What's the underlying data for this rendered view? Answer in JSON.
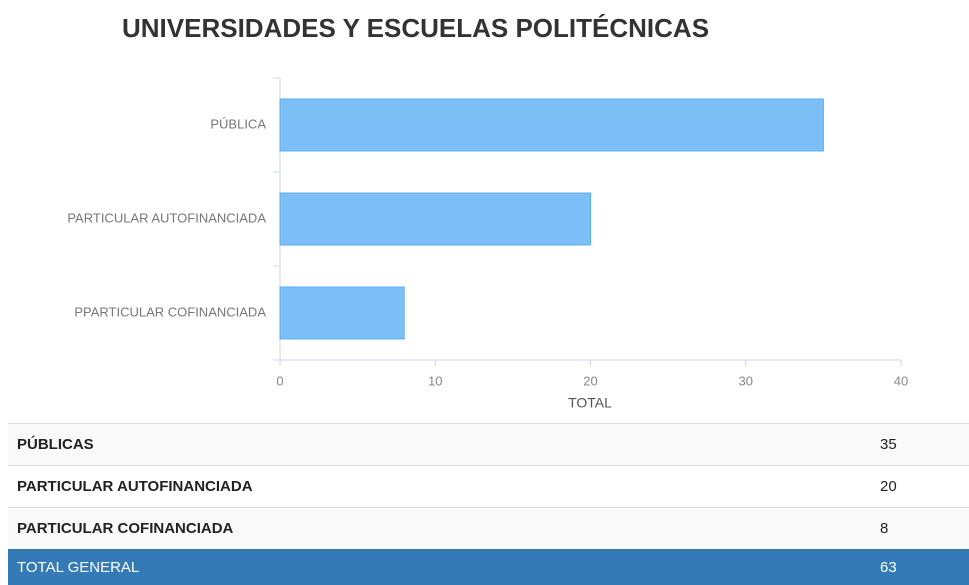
{
  "chart_data": {
    "type": "bar",
    "orientation": "horizontal",
    "title": "UNIVERSIDADES Y ESCUELAS POLITÉCNICAS",
    "categories": [
      "PÚBLICA",
      "PARTICULAR AUTOFINANCIADA",
      "PPARTICULAR COFINANCIADA"
    ],
    "values": [
      35,
      20,
      8
    ],
    "color": "#7cbff6",
    "edge_color": "#5cadee",
    "xlim": [
      0,
      40
    ],
    "xticks": [
      0,
      10,
      20,
      30,
      40
    ],
    "xlabel": "TOTAL"
  },
  "table": {
    "rows": [
      [
        "PÚBLICAS",
        35
      ],
      [
        "PARTICULAR AUTOFINANCIADA",
        20
      ],
      [
        "PARTICULAR COFINANCIADA",
        8
      ]
    ],
    "total": [
      "TOTAL GENERAL",
      63
    ]
  }
}
